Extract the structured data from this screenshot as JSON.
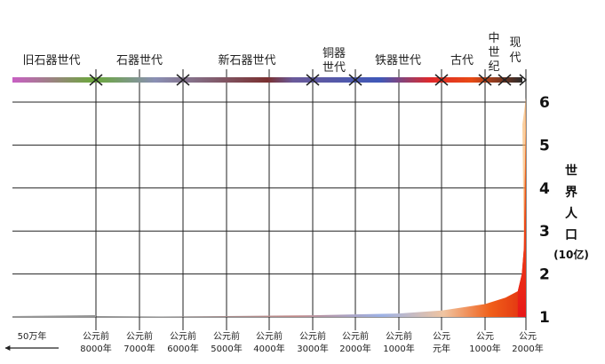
{
  "chart_data": {
    "type": "area",
    "eras": [
      {
        "label": "旧石器世代",
        "color": "#c95fc4"
      },
      {
        "label": "石器世代",
        "color": "#6aa83a"
      },
      {
        "label": "新石器世代",
        "color": "#8a8fb4"
      },
      {
        "label": "铜器世代",
        "color": "#7a3030"
      },
      {
        "label": "铁器世代",
        "color": "#3f58b8"
      },
      {
        "label": "古代",
        "color": "#e0282a"
      },
      {
        "label": "中世纪",
        "color": "#e84a14"
      },
      {
        "label": "现代",
        "color": "#2a2a2a"
      }
    ],
    "x_ticks": [
      {
        "line1": "50万年",
        "line2": ""
      },
      {
        "line1": "公元前",
        "line2": "8000年"
      },
      {
        "line1": "公元前",
        "line2": "7000年"
      },
      {
        "line1": "公元前",
        "line2": "6000年"
      },
      {
        "line1": "公元前",
        "line2": "5000年"
      },
      {
        "line1": "公元前",
        "line2": "4000年"
      },
      {
        "line1": "公元前",
        "line2": "3000年"
      },
      {
        "line1": "公元前",
        "line2": "2000年"
      },
      {
        "line1": "公元前",
        "line2": "1000年"
      },
      {
        "line1": "公元",
        "line2": "元年"
      },
      {
        "line1": "公元",
        "line2": "1000年"
      },
      {
        "line1": "公元",
        "line2": "2000年"
      }
    ],
    "y_ticks": [
      "1",
      "2",
      "3",
      "4",
      "5",
      "6"
    ],
    "ylim": [
      1,
      6.3
    ],
    "ylabel_lines": [
      "世",
      "界",
      "人",
      "口",
      "(10亿)"
    ],
    "population": [
      {
        "year": -8000,
        "value": 1.0
      },
      {
        "year": -5000,
        "value": 1.02
      },
      {
        "year": -3000,
        "value": 1.04
      },
      {
        "year": -1000,
        "value": 1.08
      },
      {
        "year": 0,
        "value": 1.15
      },
      {
        "year": 1000,
        "value": 1.3
      },
      {
        "year": 1500,
        "value": 1.45
      },
      {
        "year": 1800,
        "value": 1.6
      },
      {
        "year": 1900,
        "value": 2.0
      },
      {
        "year": 1950,
        "value": 2.6
      },
      {
        "year": 2000,
        "value": 6.1
      }
    ],
    "grid": true
  }
}
